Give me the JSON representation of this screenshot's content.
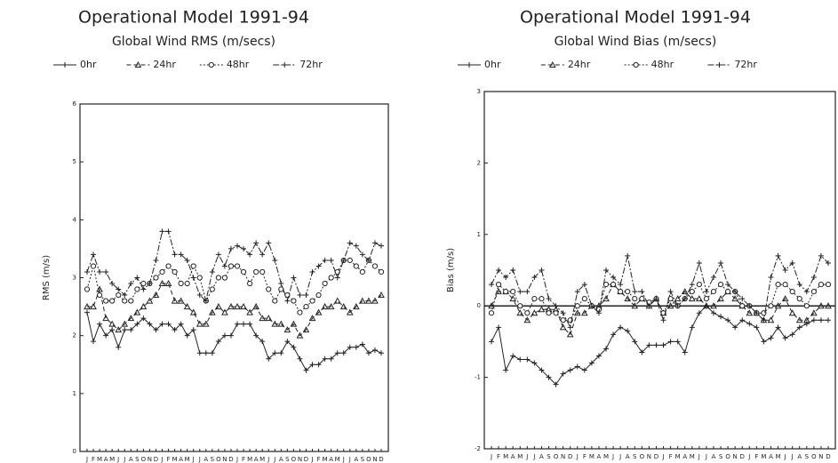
{
  "chart_data": [
    {
      "type": "line",
      "title": "Operational Model 1991-94",
      "subtitle": "Global Wind RMS (m/secs)",
      "y_label": "RMS (m/s)",
      "categories": [
        "J",
        "F",
        "M",
        "A",
        "M",
        "J",
        "J",
        "A",
        "S",
        "O",
        "N",
        "D",
        "J",
        "F",
        "M",
        "A",
        "M",
        "J",
        "J",
        "A",
        "S",
        "O",
        "N",
        "D",
        "J",
        "F",
        "M",
        "A",
        "M",
        "J",
        "J",
        "A",
        "S",
        "O",
        "N",
        "D",
        "J",
        "F",
        "M",
        "A",
        "M",
        "J",
        "J",
        "A",
        "S",
        "O",
        "N",
        "D"
      ],
      "ylim": [
        0,
        6
      ],
      "yticks": [
        0,
        1,
        2,
        3,
        4,
        5,
        6
      ],
      "zero_line": false,
      "series": [
        {
          "name": "0hr",
          "color": "#222",
          "dash": "",
          "marker": "plus",
          "values": [
            2.4,
            1.9,
            2.2,
            2.0,
            2.1,
            1.8,
            2.1,
            2.1,
            2.2,
            2.3,
            2.2,
            2.1,
            2.2,
            2.2,
            2.1,
            2.2,
            2.0,
            2.1,
            1.7,
            1.7,
            1.7,
            1.9,
            2.0,
            2.0,
            2.2,
            2.2,
            2.2,
            2.0,
            1.9,
            1.6,
            1.7,
            1.7,
            1.9,
            1.8,
            1.6,
            1.4,
            1.5,
            1.5,
            1.6,
            1.6,
            1.7,
            1.7,
            1.8,
            1.8,
            1.85,
            1.7,
            1.75,
            1.7
          ]
        },
        {
          "name": "24hr",
          "color": "#222",
          "dash": "5 3",
          "marker": "triangle",
          "values": [
            2.5,
            2.5,
            2.8,
            2.3,
            2.2,
            2.1,
            2.2,
            2.3,
            2.4,
            2.5,
            2.6,
            2.7,
            2.9,
            2.9,
            2.6,
            2.6,
            2.5,
            2.4,
            2.2,
            2.2,
            2.4,
            2.5,
            2.4,
            2.5,
            2.5,
            2.5,
            2.4,
            2.5,
            2.3,
            2.3,
            2.2,
            2.2,
            2.1,
            2.2,
            2.0,
            2.1,
            2.3,
            2.4,
            2.5,
            2.5,
            2.6,
            2.5,
            2.4,
            2.5,
            2.6,
            2.6,
            2.6,
            2.7
          ]
        },
        {
          "name": "48hr",
          "color": "#222",
          "dash": "2 2",
          "marker": "circle",
          "values": [
            2.8,
            3.2,
            2.7,
            2.6,
            2.6,
            2.7,
            2.6,
            2.6,
            2.8,
            2.9,
            2.9,
            3.0,
            3.1,
            3.2,
            3.1,
            2.9,
            2.9,
            3.2,
            3.0,
            2.6,
            2.8,
            3.0,
            3.0,
            3.2,
            3.2,
            3.1,
            2.9,
            3.1,
            3.1,
            2.8,
            2.6,
            2.8,
            2.7,
            2.6,
            2.4,
            2.5,
            2.6,
            2.7,
            2.9,
            3.0,
            3.1,
            3.3,
            3.3,
            3.2,
            3.1,
            3.3,
            3.2,
            3.1
          ]
        },
        {
          "name": "72hr",
          "color": "#222",
          "dash": "7 2 2 2",
          "marker": "plus",
          "values": [
            3.1,
            3.4,
            3.1,
            3.1,
            2.9,
            2.8,
            2.7,
            2.9,
            3.0,
            2.8,
            2.9,
            3.3,
            3.8,
            3.8,
            3.4,
            3.4,
            3.3,
            3.0,
            2.7,
            2.6,
            3.1,
            3.4,
            3.2,
            3.5,
            3.55,
            3.5,
            3.4,
            3.6,
            3.4,
            3.6,
            3.3,
            2.9,
            2.6,
            3.0,
            2.7,
            2.7,
            3.1,
            3.2,
            3.3,
            3.3,
            3.0,
            3.3,
            3.6,
            3.55,
            3.4,
            3.3,
            3.6,
            3.55
          ]
        }
      ]
    },
    {
      "type": "line",
      "title": "Operational Model 1991-94",
      "subtitle": "Global Wind Bias (m/secs)",
      "y_label": "Bias (m/s)",
      "categories": [
        "J",
        "F",
        "M",
        "A",
        "M",
        "J",
        "J",
        "A",
        "S",
        "O",
        "N",
        "D",
        "J",
        "F",
        "M",
        "A",
        "M",
        "J",
        "J",
        "A",
        "S",
        "O",
        "N",
        "D",
        "J",
        "F",
        "M",
        "A",
        "M",
        "J",
        "J",
        "A",
        "S",
        "O",
        "N",
        "D",
        "J",
        "F",
        "M",
        "A",
        "M",
        "J",
        "J",
        "A",
        "S",
        "O",
        "N",
        "D"
      ],
      "ylim": [
        -2,
        3
      ],
      "yticks": [
        -2,
        -1,
        0,
        1,
        2,
        3
      ],
      "zero_line": true,
      "series": [
        {
          "name": "0hr",
          "color": "#222",
          "dash": "",
          "marker": "plus",
          "values": [
            -0.5,
            -0.3,
            -0.9,
            -0.7,
            -0.75,
            -0.75,
            -0.8,
            -0.9,
            -1.0,
            -1.1,
            -0.95,
            -0.9,
            -0.85,
            -0.9,
            -0.8,
            -0.7,
            -0.6,
            -0.4,
            -0.3,
            -0.35,
            -0.5,
            -0.65,
            -0.55,
            -0.55,
            -0.55,
            -0.5,
            -0.5,
            -0.65,
            -0.3,
            -0.1,
            0.0,
            -0.1,
            -0.15,
            -0.2,
            -0.3,
            -0.2,
            -0.25,
            -0.3,
            -0.5,
            -0.45,
            -0.3,
            -0.45,
            -0.4,
            -0.3,
            -0.25,
            -0.2,
            -0.2,
            -0.2
          ]
        },
        {
          "name": "24hr",
          "color": "#222",
          "dash": "5 3",
          "marker": "triangle",
          "values": [
            0.0,
            0.2,
            0.2,
            0.1,
            -0.1,
            -0.2,
            -0.1,
            -0.05,
            -0.05,
            -0.05,
            -0.3,
            -0.4,
            -0.1,
            -0.1,
            0.0,
            0.0,
            0.1,
            0.3,
            0.2,
            0.1,
            0.0,
            0.1,
            0.0,
            0.1,
            -0.1,
            0.0,
            0.1,
            0.2,
            0.1,
            0.1,
            0.0,
            0.0,
            0.1,
            0.2,
            0.1,
            0.0,
            -0.1,
            -0.1,
            -0.2,
            -0.2,
            0.0,
            0.1,
            -0.1,
            -0.2,
            -0.2,
            -0.1,
            0.0,
            0.0
          ]
        },
        {
          "name": "48hr",
          "color": "#222",
          "dash": "2 2",
          "marker": "circle",
          "values": [
            -0.1,
            0.3,
            0.2,
            0.2,
            0.0,
            -0.1,
            0.1,
            0.1,
            -0.1,
            -0.1,
            -0.2,
            -0.2,
            0.0,
            0.1,
            0.0,
            -0.05,
            0.3,
            0.3,
            0.2,
            0.2,
            0.1,
            0.1,
            0.05,
            0.1,
            -0.1,
            0.1,
            0.0,
            0.1,
            0.2,
            0.3,
            0.1,
            0.2,
            0.3,
            0.2,
            0.2,
            0.0,
            0.0,
            -0.1,
            -0.1,
            0.0,
            0.3,
            0.3,
            0.2,
            0.1,
            0.0,
            0.2,
            0.3,
            0.3
          ]
        },
        {
          "name": "72hr",
          "color": "#222",
          "dash": "7 2 2 2",
          "marker": "plus",
          "values": [
            0.3,
            0.5,
            0.4,
            0.5,
            0.2,
            0.2,
            0.4,
            0.5,
            0.1,
            0.0,
            -0.1,
            -0.3,
            0.2,
            0.3,
            0.0,
            -0.1,
            0.5,
            0.4,
            0.3,
            0.7,
            0.2,
            0.2,
            0.0,
            0.1,
            -0.2,
            0.2,
            0.0,
            0.1,
            0.3,
            0.6,
            0.2,
            0.4,
            0.6,
            0.3,
            0.2,
            0.1,
            0.0,
            -0.1,
            -0.2,
            0.4,
            0.7,
            0.5,
            0.6,
            0.3,
            0.2,
            0.4,
            0.7,
            0.6
          ]
        }
      ]
    }
  ]
}
